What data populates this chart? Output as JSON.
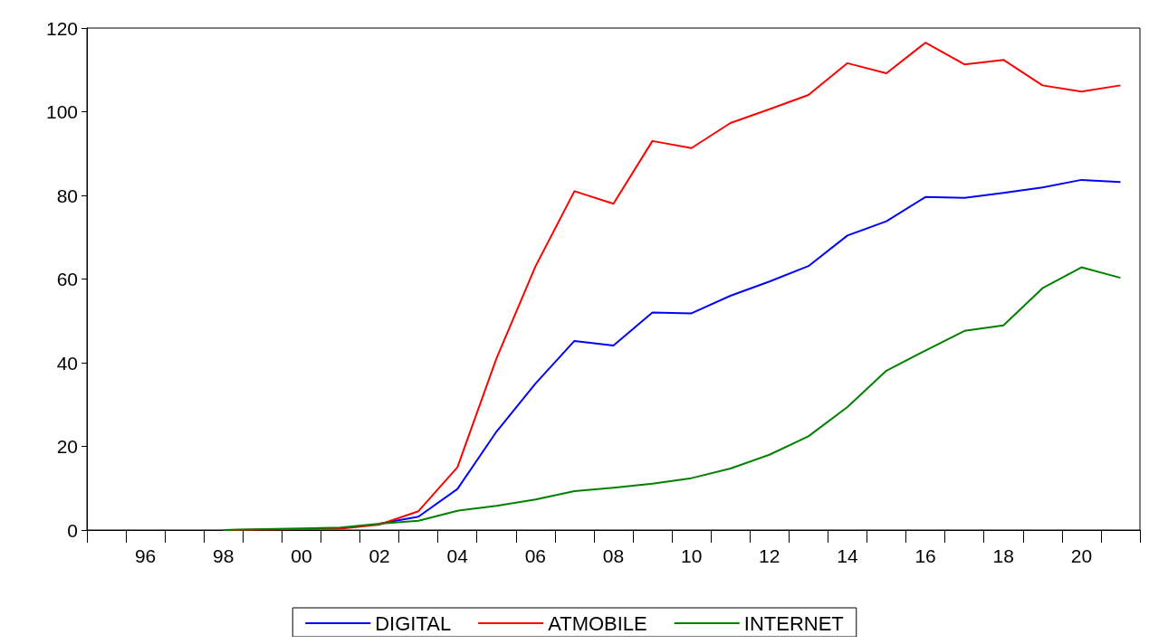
{
  "chart_data": {
    "type": "line",
    "categories": [
      null,
      "96",
      null,
      "98",
      null,
      "00",
      null,
      "02",
      null,
      "04",
      null,
      "06",
      null,
      "08",
      null,
      "10",
      null,
      "12",
      null,
      "14",
      null,
      "16",
      null,
      "18",
      null,
      "20",
      null
    ],
    "series": [
      {
        "name": "DIGITAL",
        "color": "#0000ff",
        "values": [
          null,
          null,
          null,
          null,
          null,
          null,
          null,
          1.5,
          3.2,
          9.8,
          23.5,
          35,
          45.2,
          44.1,
          52,
          51.8,
          56,
          59.4,
          63.1,
          70.4,
          73.8,
          79.6,
          79.4,
          80.6,
          81.9,
          83.7,
          83.2
        ]
      },
      {
        "name": "ATMOBILE",
        "color": "#ff0000",
        "values": [
          null,
          null,
          null,
          0,
          0.1,
          0.2,
          0.3,
          1.3,
          4.5,
          15,
          41,
          63,
          81,
          78,
          93,
          91.3,
          97.3,
          100.6,
          104,
          111.6,
          109.2,
          116.5,
          111.3,
          112.4,
          106.3,
          104.8,
          106.3
        ]
      },
      {
        "name": "INTERNET",
        "color": "#008000",
        "values": [
          null,
          null,
          null,
          0,
          0.2,
          0.4,
          0.6,
          1.5,
          2.2,
          4.6,
          5.8,
          7.3,
          9.3,
          10.1,
          11.1,
          12.4,
          14.7,
          18,
          22.4,
          29.4,
          38.1,
          42.9,
          47.6,
          48.9,
          57.8,
          62.8,
          60.3
        ]
      }
    ],
    "ylim": [
      0,
      120
    ],
    "yticks": [
      0,
      20,
      40,
      60,
      80,
      100,
      120
    ],
    "grid": false,
    "legend": "bottom",
    "marker": "none",
    "line_style": "solid"
  }
}
